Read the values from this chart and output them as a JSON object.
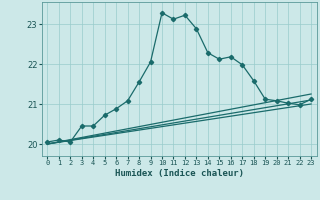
{
  "title": "",
  "xlabel": "Humidex (Indice chaleur)",
  "bg_color": "#cce8e8",
  "grid_color": "#99cccc",
  "line_color": "#1a6b6b",
  "xlim": [
    -0.5,
    23.5
  ],
  "ylim": [
    19.7,
    23.55
  ],
  "xticks": [
    0,
    1,
    2,
    3,
    4,
    5,
    6,
    7,
    8,
    9,
    10,
    11,
    12,
    13,
    14,
    15,
    16,
    17,
    18,
    19,
    20,
    21,
    22,
    23
  ],
  "yticks": [
    20,
    21,
    22,
    23
  ],
  "series": {
    "main": {
      "x": [
        0,
        1,
        2,
        3,
        4,
        5,
        6,
        7,
        8,
        9,
        10,
        11,
        12,
        13,
        14,
        15,
        16,
        17,
        18,
        19,
        20,
        21,
        22,
        23
      ],
      "y": [
        20.05,
        20.1,
        20.05,
        20.45,
        20.45,
        20.72,
        20.88,
        21.08,
        21.55,
        22.05,
        23.28,
        23.12,
        23.22,
        22.88,
        22.28,
        22.12,
        22.18,
        21.98,
        21.58,
        21.12,
        21.08,
        21.02,
        20.98,
        21.12
      ]
    },
    "line1": {
      "x": [
        0,
        23
      ],
      "y": [
        20.0,
        21.25
      ]
    },
    "line2": {
      "x": [
        0,
        23
      ],
      "y": [
        20.0,
        21.1
      ]
    },
    "line3": {
      "x": [
        0,
        23
      ],
      "y": [
        20.0,
        21.0
      ]
    }
  }
}
